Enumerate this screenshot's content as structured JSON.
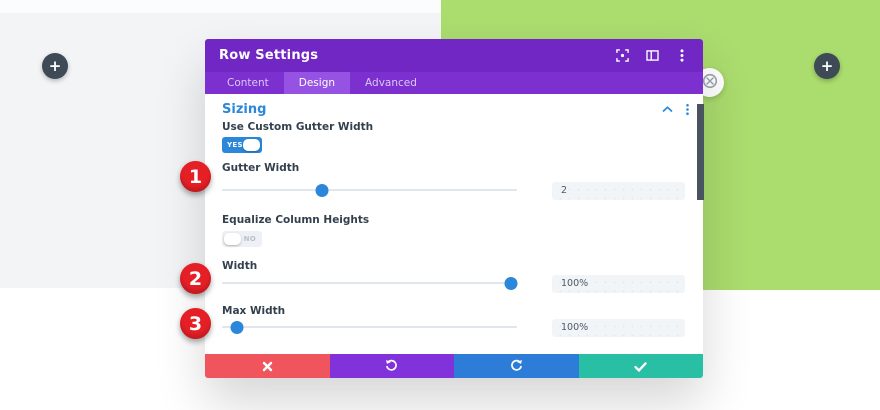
{
  "window": {
    "title": "Row Settings"
  },
  "header_icons": [
    "expand-icon",
    "split-view-icon",
    "kebab-menu-icon"
  ],
  "tabs": [
    {
      "label": "Content",
      "active": false
    },
    {
      "label": "Design",
      "active": true
    },
    {
      "label": "Advanced",
      "active": false
    }
  ],
  "section": {
    "title": "Sizing"
  },
  "fields": {
    "use_custom_gutter_width": {
      "label": "Use Custom Gutter Width",
      "toggle_label": "YES",
      "state": "on"
    },
    "gutter_width": {
      "label": "Gutter Width",
      "value": "2",
      "slider_percent": 34
    },
    "equalize_column_heights": {
      "label": "Equalize Column Heights",
      "toggle_label": "NO",
      "state": "off"
    },
    "width": {
      "label": "Width",
      "value": "100%",
      "slider_percent": 98
    },
    "max_width": {
      "label": "Max Width",
      "value": "100%",
      "slider_percent": 5
    }
  },
  "footer_buttons": [
    "cancel",
    "undo",
    "redo",
    "save"
  ],
  "annotations": [
    "1",
    "2",
    "3"
  ],
  "add_button_glyph": "+",
  "colors": {
    "header_purple": "#7027c4",
    "tabbar_purple": "#7c30d0",
    "active_tab_purple": "#9652e2",
    "accent_blue": "#2b87da",
    "footer_red": "#f0545c",
    "footer_purple": "#8232da",
    "footer_blue": "#2d7dd8",
    "footer_teal": "#29bfa4",
    "annotation_red": "#e41f26",
    "background_green": "#abdc6e",
    "background_gray": "#f3f4f6",
    "scrollbar_gray": "#4a5360"
  }
}
